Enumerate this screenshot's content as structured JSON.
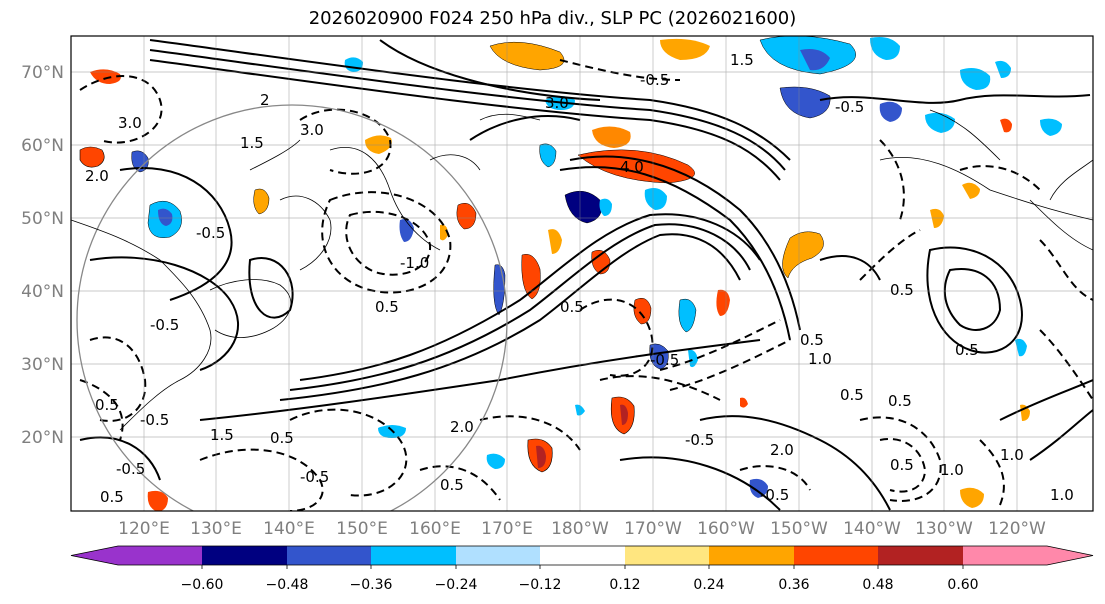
{
  "title": "2026020900 F024 250 hPa div., SLP PC (2026021600)",
  "lat_labels": [
    "70°N",
    "60°N",
    "50°N",
    "40°N",
    "30°N",
    "20°N"
  ],
  "lon_labels": [
    "120°E",
    "130°E",
    "140°E",
    "150°E",
    "160°E",
    "170°E",
    "180°W",
    "170°W",
    "160°W",
    "150°W",
    "140°W",
    "130°W",
    "120°W"
  ],
  "colorbar": {
    "ticks": [
      "−0.60",
      "−0.48",
      "−0.36",
      "−0.24",
      "−0.12",
      "0.12",
      "0.24",
      "0.36",
      "0.48",
      "0.60"
    ],
    "colors": [
      "#9933cc",
      "#000080",
      "#3355cc",
      "#00bfff",
      "#b0e0ff",
      "#ffffff",
      "#ffe680",
      "#ffa500",
      "#ff4500",
      "#b22222",
      "#ff88aa"
    ]
  },
  "contour_labels": [
    {
      "text": "2.0"
    },
    {
      "text": "3.0"
    },
    {
      "text": "-0.5"
    },
    {
      "text": "2"
    },
    {
      "text": "3.0"
    },
    {
      "text": "1.5"
    },
    {
      "text": "-0.5"
    },
    {
      "text": "0.5"
    },
    {
      "text": "-1.0"
    },
    {
      "text": "0.5"
    },
    {
      "text": "-0.5"
    },
    {
      "text": "1.5"
    },
    {
      "text": "0.5"
    },
    {
      "text": "2.0"
    },
    {
      "text": "-0.5"
    },
    {
      "text": "0.5"
    },
    {
      "text": "-0.5"
    },
    {
      "text": "3.0"
    },
    {
      "text": "-0.5"
    },
    {
      "text": "4.0"
    },
    {
      "text": "0.5"
    },
    {
      "text": "1.0"
    },
    {
      "text": "0.5"
    },
    {
      "text": "1.5"
    },
    {
      "text": "-0.5"
    },
    {
      "text": "0.5"
    },
    {
      "text": "1.0"
    },
    {
      "text": "0.5"
    },
    {
      "text": "0.5"
    },
    {
      "text": "1.0"
    },
    {
      "text": "-0.5"
    },
    {
      "text": "2.0"
    },
    {
      "text": "0.5"
    },
    {
      "text": "-0.5"
    },
    {
      "text": "0.5"
    },
    {
      "text": "1.0"
    },
    {
      "text": "0.5"
    },
    {
      "text": "-0.5"
    }
  ]
}
